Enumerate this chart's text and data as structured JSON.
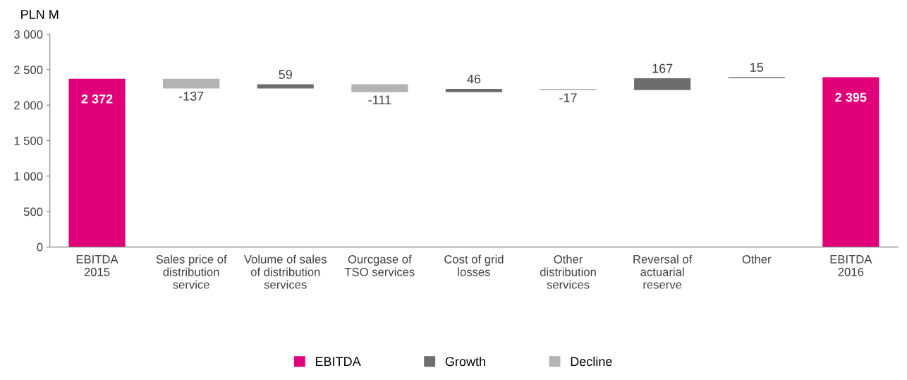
{
  "chart_data": {
    "type": "bar",
    "ylabel": "PLN M",
    "categories": [
      "EBITDA\n2015",
      "Sales price of\ndistribution\nservice",
      "Volume of sales\nof distribution\nservices",
      "Ourcgase of\nTSO services",
      "Cost of grid\nlosses",
      "Other\ndistribution\nservices",
      "Reversal of\nactuarial\nreserve",
      "Other",
      "EBITDA\n2016"
    ],
    "series": [
      {
        "name": "EBITDA",
        "color": "#e2007a",
        "values": [
          2372,
          null,
          null,
          null,
          null,
          null,
          null,
          null,
          2395
        ],
        "value_labels": [
          "2 372",
          null,
          null,
          null,
          null,
          null,
          null,
          null,
          "2 395"
        ]
      },
      {
        "name": "Growth",
        "color": "#6d6d6d",
        "base": [
          null,
          null,
          2235,
          null,
          2183,
          null,
          2212,
          2379,
          null
        ],
        "values": [
          null,
          null,
          59,
          null,
          46,
          null,
          167,
          15,
          null
        ],
        "value_labels": [
          null,
          null,
          "59",
          null,
          "46",
          null,
          "167",
          "15",
          null
        ]
      },
      {
        "name": "Decline",
        "color": "#b3b3b3",
        "base": [
          null,
          2372,
          null,
          2294,
          null,
          2229,
          null,
          null,
          null
        ],
        "values": [
          null,
          -137,
          null,
          -111,
          null,
          -17,
          null,
          null,
          null
        ],
        "value_labels": [
          null,
          "-137",
          null,
          "-111",
          null,
          "-17",
          null,
          null,
          null
        ]
      }
    ],
    "ylim": [
      0,
      3000
    ],
    "yticks": [
      0,
      500,
      {
        "value": 1000,
        "label": "1 000"
      },
      {
        "value": 1500,
        "label": "1 500"
      },
      {
        "value": 2000,
        "label": "2 000"
      },
      {
        "value": 2500,
        "label": "2 500"
      },
      {
        "value": 3000,
        "label": "3 000"
      }
    ],
    "grid": false,
    "legend": "bottom"
  }
}
